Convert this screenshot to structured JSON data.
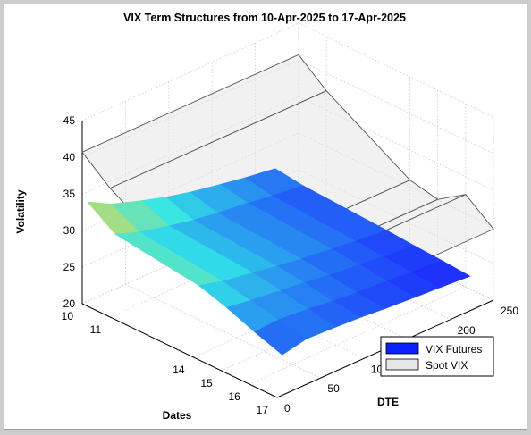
{
  "chart_data": {
    "type": "surface3d",
    "title": "VIX Term Structures from 10-Apr-2025 to 17-Apr-2025",
    "xlabel": "Dates",
    "ylabel": "DTE",
    "zlabel": "Volatility",
    "z_ticks": [
      "20",
      "25",
      "30",
      "35",
      "40",
      "45"
    ],
    "dates_ticks": [
      "10",
      "11",
      "14",
      "15",
      "16",
      "17"
    ],
    "dte_ticks": [
      "0",
      "50",
      "100",
      "150",
      "200",
      "250"
    ],
    "zlim": [
      20,
      45
    ],
    "dte_range": [
      0,
      250
    ],
    "legend_position": "bottom-right",
    "grid": true,
    "series": [
      {
        "name": "VIX Futures",
        "kind": "surface",
        "dates": [
          10,
          11,
          14,
          15,
          16,
          17
        ],
        "dte": [
          6,
          34,
          69,
          97,
          125,
          160,
          188,
          223
        ],
        "values": [
          [
            33.6,
            31.8,
            30.4,
            29.4,
            28.6,
            27.8,
            27.2,
            26.6
          ],
          [
            31.0,
            29.8,
            28.8,
            28.1,
            27.6,
            27.1,
            26.6,
            26.1
          ],
          [
            29.5,
            28.6,
            27.9,
            27.3,
            26.8,
            26.3,
            25.9,
            25.5
          ],
          [
            28.3,
            27.8,
            27.3,
            26.9,
            26.4,
            26.0,
            25.6,
            25.2
          ],
          [
            26.8,
            27.0,
            26.6,
            26.2,
            25.9,
            25.6,
            25.3,
            25.0
          ],
          [
            25.5,
            26.2,
            26.0,
            25.8,
            25.5,
            25.2,
            25.0,
            24.7
          ]
        ],
        "colors": {
          "high": "#ffd633",
          "mid": "#33e6e6",
          "low": "#1a1aff"
        }
      },
      {
        "name": "Spot VIX",
        "kind": "mesh",
        "dates": [
          10,
          11,
          14,
          15,
          16,
          17
        ],
        "dte": [
          0,
          250
        ],
        "values": [
          40.7,
          37.6,
          30.9,
          30.1,
          32.6,
          29.7
        ],
        "fill": "#e6e6e6"
      }
    ]
  }
}
